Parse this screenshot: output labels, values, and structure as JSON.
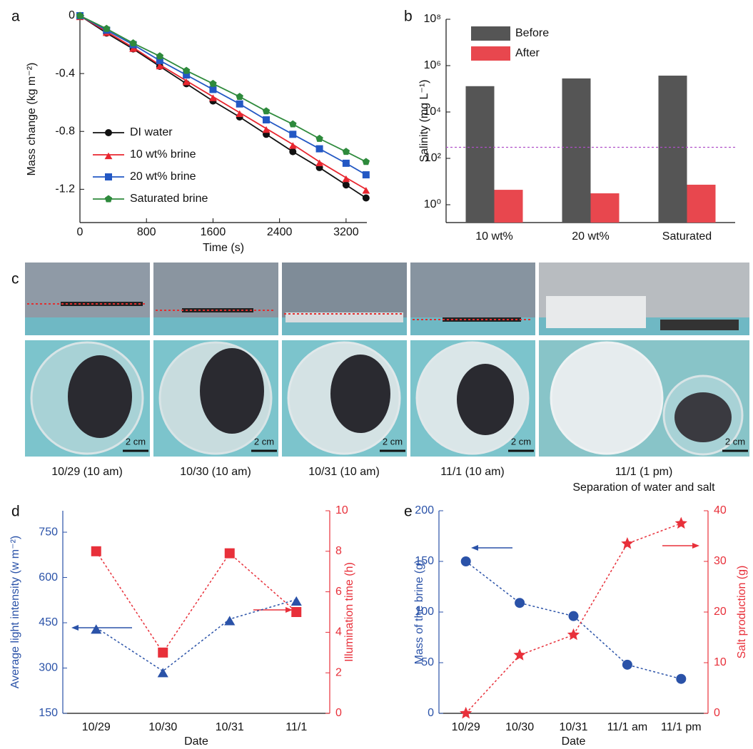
{
  "chart_data": [
    {
      "panel": "a",
      "type": "line",
      "x_label": "Time (s)",
      "y_label": "Mass change (kg m⁻²)",
      "x": [
        0,
        320,
        640,
        960,
        1280,
        1600,
        1920,
        2240,
        2560,
        2880,
        3200,
        3440
      ],
      "xlim": [
        0,
        3450
      ],
      "xticks": [
        0,
        800,
        1600,
        2400,
        3200
      ],
      "ylim": [
        -1.43,
        0
      ],
      "yticks": [
        0,
        -0.4,
        -0.8,
        -1.2
      ],
      "legend": "lower left",
      "line_style": "solid",
      "series": [
        {
          "name": "DI water",
          "color": "#111111",
          "marker": "circle",
          "values": [
            0,
            -0.12,
            -0.23,
            -0.35,
            -0.47,
            -0.59,
            -0.7,
            -0.82,
            -0.94,
            -1.05,
            -1.17,
            -1.26
          ]
        },
        {
          "name": "10 wt% brine",
          "color": "#e8262f",
          "marker": "triangle",
          "values": [
            0,
            -0.11,
            -0.22,
            -0.34,
            -0.45,
            -0.56,
            -0.67,
            -0.78,
            -0.89,
            -1.01,
            -1.12,
            -1.2
          ]
        },
        {
          "name": "20 wt% brine",
          "color": "#2358c4",
          "marker": "square",
          "values": [
            0,
            -0.1,
            -0.2,
            -0.31,
            -0.41,
            -0.51,
            -0.61,
            -0.72,
            -0.82,
            -0.92,
            -1.02,
            -1.1
          ]
        },
        {
          "name": "Saturated brine",
          "color": "#2e8a3c",
          "marker": "pentagon",
          "values": [
            0,
            -0.09,
            -0.19,
            -0.28,
            -0.38,
            -0.47,
            -0.56,
            -0.66,
            -0.75,
            -0.85,
            -0.94,
            -1.01
          ]
        }
      ]
    },
    {
      "panel": "b",
      "type": "bar",
      "log_scale": true,
      "y_label": "Salinity (mg L⁻¹)",
      "categories": [
        "10 wt%",
        "20 wt%",
        "Saturated"
      ],
      "ylim": [
        0.17,
        100000000
      ],
      "yticks": [
        {
          "value": 1,
          "label": "10⁰"
        },
        {
          "value": 100,
          "label": "10²"
        },
        {
          "value": 10000,
          "label": "10⁴"
        },
        {
          "value": 1000000,
          "label": "10⁶"
        },
        {
          "value": 100000000,
          "label": "10⁸"
        }
      ],
      "reference_line": {
        "value": 300,
        "color": "#b04fc8"
      },
      "legend": "upper left",
      "series": [
        {
          "name": "Before",
          "color": "#555555",
          "values": [
            130000,
            280000,
            370000
          ]
        },
        {
          "name": "After",
          "color": "#e8474e",
          "values": [
            4.4,
            3.1,
            7.3
          ]
        }
      ]
    },
    {
      "panel": "d",
      "type": "line",
      "x_label": "Date",
      "y_label": "Average light intensity (w m⁻²)",
      "y2_label": "Illumination time (h)",
      "categories": [
        "10/29",
        "10/30",
        "10/31",
        "11/1"
      ],
      "ylim": [
        150,
        821
      ],
      "yticks": [
        150,
        300,
        450,
        600,
        750
      ],
      "y2lim": [
        0,
        10
      ],
      "y2ticks": [
        0,
        2,
        4,
        6,
        8,
        10
      ],
      "line_style": "dotted",
      "series": [
        {
          "color": "#2a52a8",
          "marker": "triangle",
          "values": [
            434,
            290,
            462,
            527
          ]
        },
        {
          "color": "#e8303a",
          "marker": "square",
          "axis": "y2",
          "values": [
            8,
            3,
            7.9,
            5
          ]
        }
      ]
    },
    {
      "panel": "e",
      "type": "line",
      "x_label": "Date",
      "y_label": "Mass of the brine (g)",
      "y2_label": "Salt production (g)",
      "categories": [
        "10/29",
        "10/30",
        "10/31",
        "11/1 am",
        "11/1 pm"
      ],
      "ylim": [
        0,
        200
      ],
      "yticks": [
        0,
        50,
        100,
        150,
        200
      ],
      "y2lim": [
        0,
        40
      ],
      "y2ticks": [
        0,
        10,
        20,
        30,
        40
      ],
      "line_style": "dotted",
      "series": [
        {
          "color": "#2a52a8",
          "marker": "circle",
          "values": [
            150,
            109,
            96,
            48,
            34
          ]
        },
        {
          "color": "#e8303a",
          "marker": "star",
          "axis": "y2",
          "values": [
            0,
            11.5,
            15.5,
            33.5,
            37.5
          ]
        }
      ]
    }
  ],
  "photo_panel": {
    "label": "c",
    "photos": [
      {
        "caption": "10/29 (10 am)",
        "scale_bar": "2 cm"
      },
      {
        "caption": "10/30 (10 am)",
        "scale_bar": "2 cm"
      },
      {
        "caption": "10/31 (10 am)",
        "scale_bar": "2 cm"
      },
      {
        "caption": "11/1 (10 am)",
        "scale_bar": "2 cm"
      },
      {
        "caption": "11/1 (1 pm)",
        "scale_bar": "2 cm"
      }
    ],
    "subcaption": "Separation of water and salt"
  }
}
